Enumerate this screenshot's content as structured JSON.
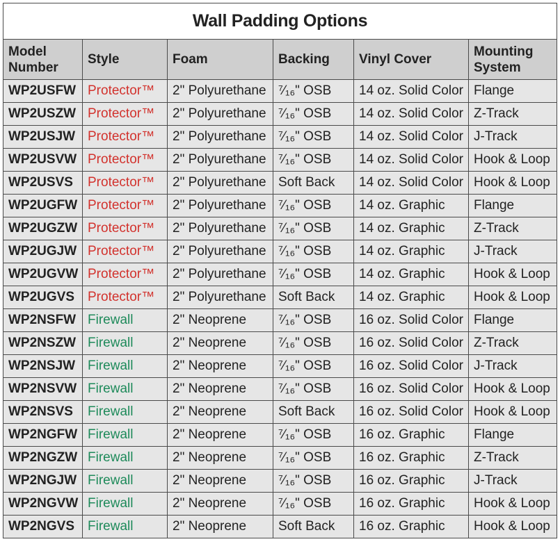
{
  "title": "Wall Padding Options",
  "colors": {
    "protector": "#d2322d",
    "firewall": "#1e8a5a",
    "header_bg": "#cfcfcf",
    "row_bg": "#e6e6e6"
  },
  "columns": [
    "Model Number",
    "Style",
    "Foam",
    "Backing",
    "Vinyl Cover",
    "Mounting System"
  ],
  "rows": [
    [
      "WP2USFW",
      "Protector™",
      "2\" Polyurethane",
      "⁷⁄₁₆\" OSB",
      "14 oz. Solid Color",
      "Flange"
    ],
    [
      "WP2USZW",
      "Protector™",
      "2\" Polyurethane",
      "⁷⁄₁₆\" OSB",
      "14 oz. Solid Color",
      "Z-Track"
    ],
    [
      "WP2USJW",
      "Protector™",
      "2\" Polyurethane",
      "⁷⁄₁₆\" OSB",
      "14 oz. Solid Color",
      "J-Track"
    ],
    [
      "WP2USVW",
      "Protector™",
      "2\" Polyurethane",
      "⁷⁄₁₆\" OSB",
      "14 oz. Solid Color",
      "Hook & Loop"
    ],
    [
      "WP2USVS",
      "Protector™",
      "2\" Polyurethane",
      "Soft Back",
      "14 oz. Solid Color",
      "Hook & Loop"
    ],
    [
      "WP2UGFW",
      "Protector™",
      "2\" Polyurethane",
      "⁷⁄₁₆\" OSB",
      "14 oz. Graphic",
      "Flange"
    ],
    [
      "WP2UGZW",
      "Protector™",
      "2\" Polyurethane",
      "⁷⁄₁₆\" OSB",
      "14 oz. Graphic",
      "Z-Track"
    ],
    [
      "WP2UGJW",
      "Protector™",
      "2\" Polyurethane",
      "⁷⁄₁₆\" OSB",
      "14 oz. Graphic",
      "J-Track"
    ],
    [
      "WP2UGVW",
      "Protector™",
      "2\" Polyurethane",
      "⁷⁄₁₆\" OSB",
      "14 oz. Graphic",
      "Hook & Loop"
    ],
    [
      "WP2UGVS",
      "Protector™",
      "2\" Polyurethane",
      "Soft Back",
      "14 oz. Graphic",
      "Hook & Loop"
    ],
    [
      "WP2NSFW",
      "Firewall",
      "2\" Neoprene",
      "⁷⁄₁₆\" OSB",
      "16 oz. Solid Color",
      "Flange"
    ],
    [
      "WP2NSZW",
      "Firewall",
      "2\" Neoprene",
      "⁷⁄₁₆\" OSB",
      "16 oz. Solid Color",
      "Z-Track"
    ],
    [
      "WP2NSJW",
      "Firewall",
      "2\" Neoprene",
      "⁷⁄₁₆\" OSB",
      "16 oz. Solid Color",
      "J-Track"
    ],
    [
      "WP2NSVW",
      "Firewall",
      "2\" Neoprene",
      "⁷⁄₁₆\" OSB",
      "16 oz. Solid Color",
      "Hook & Loop"
    ],
    [
      "WP2NSVS",
      "Firewall",
      "2\" Neoprene",
      "Soft Back",
      "16 oz. Solid Color",
      "Hook & Loop"
    ],
    [
      "WP2NGFW",
      "Firewall",
      "2\" Neoprene",
      "⁷⁄₁₆\" OSB",
      "16 oz. Graphic",
      "Flange"
    ],
    [
      "WP2NGZW",
      "Firewall",
      "2\" Neoprene",
      "⁷⁄₁₆\" OSB",
      "16 oz. Graphic",
      "Z-Track"
    ],
    [
      "WP2NGJW",
      "Firewall",
      "2\" Neoprene",
      "⁷⁄₁₆\" OSB",
      "16 oz. Graphic",
      "J-Track"
    ],
    [
      "WP2NGVW",
      "Firewall",
      "2\" Neoprene",
      "⁷⁄₁₆\" OSB",
      "16 oz. Graphic",
      "Hook & Loop"
    ],
    [
      "WP2NGVS",
      "Firewall",
      "2\" Neoprene",
      "Soft Back",
      "16 oz. Graphic",
      "Hook & Loop"
    ]
  ]
}
